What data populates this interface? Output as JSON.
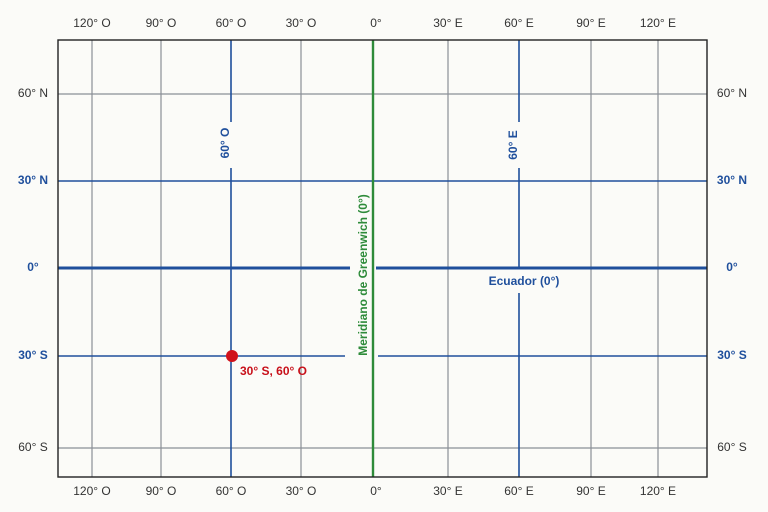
{
  "longitude_labels": {
    "top": [
      "120° O",
      "90° O",
      "60° O",
      "30° O",
      "0°",
      "30° E",
      "60° E",
      "90° E",
      "120° E"
    ],
    "bottom": [
      "120° O",
      "90° O",
      "60° O",
      "30° O",
      "0°",
      "30° E",
      "60° E",
      "90° E",
      "120° E"
    ]
  },
  "latitude_labels": {
    "left": [
      "60° N",
      "30° N",
      "0°",
      "30° S",
      "60° S"
    ],
    "right": [
      "60° N",
      "30° N",
      "0°",
      "30° S",
      "60° S"
    ]
  },
  "annotations": {
    "meridian_60w": "60° O",
    "meridian_60e": "60° E",
    "greenwich": "Meridiano de Greenwich (0°)",
    "equator": "Ecuador (0°)"
  },
  "point": {
    "label": "30° S, 60° O"
  }
}
